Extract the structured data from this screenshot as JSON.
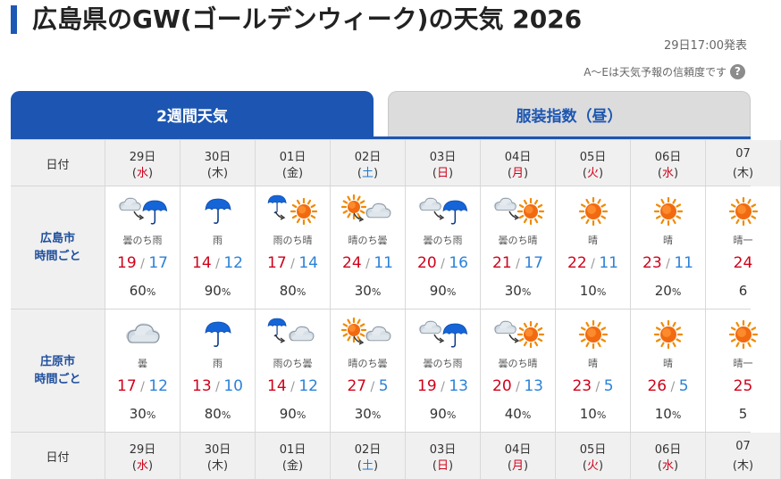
{
  "header": {
    "title": "広島県のGW(ゴールデンウィーク)の天気 2026",
    "published": "29日17:00発表",
    "reliability_note": "A〜Eは天気予報の信頼度です",
    "help_icon": "question-circle-icon"
  },
  "tabs": [
    {
      "label": "2週間天気",
      "active": true
    },
    {
      "label": "服装指数（昼）",
      "active": false
    }
  ],
  "colors": {
    "accent": "#1c56b2",
    "max_temp": "#d0021b",
    "min_temp": "#2b82d9",
    "sunday": "#d0021b",
    "saturday": "#1f78d1"
  },
  "table": {
    "date_label": "日付",
    "days": [
      {
        "date": "29日",
        "dow": "水",
        "dow_color": "red"
      },
      {
        "date": "30日",
        "dow": "木",
        "dow_color": "normal"
      },
      {
        "date": "01日",
        "dow": "金",
        "dow_color": "normal"
      },
      {
        "date": "02日",
        "dow": "土",
        "dow_color": "blue"
      },
      {
        "date": "03日",
        "dow": "日",
        "dow_color": "red"
      },
      {
        "date": "04日",
        "dow": "月",
        "dow_color": "red"
      },
      {
        "date": "05日",
        "dow": "火",
        "dow_color": "red"
      },
      {
        "date": "06日",
        "dow": "水",
        "dow_color": "red"
      },
      {
        "date": "07",
        "dow": "木",
        "dow_color": "normal"
      }
    ],
    "cities": [
      {
        "label_line1": "広島市",
        "label_line2": "時間ごと",
        "forecasts": [
          {
            "weather": "曇のち雨",
            "icon": "cloud-then-rain-icon",
            "max": "19",
            "min": "17",
            "rain": "60",
            "pct": "%"
          },
          {
            "weather": "雨",
            "icon": "rain-icon",
            "max": "14",
            "min": "12",
            "rain": "90",
            "pct": "%"
          },
          {
            "weather": "雨のち晴",
            "icon": "rain-then-sun-icon",
            "max": "17",
            "min": "14",
            "rain": "80",
            "pct": "%"
          },
          {
            "weather": "晴のち曇",
            "icon": "sun-then-cloud-icon",
            "max": "24",
            "min": "11",
            "rain": "30",
            "pct": "%"
          },
          {
            "weather": "曇のち雨",
            "icon": "cloud-then-rain-icon",
            "max": "20",
            "min": "16",
            "rain": "90",
            "pct": "%"
          },
          {
            "weather": "曇のち晴",
            "icon": "cloud-then-sun-icon",
            "max": "21",
            "min": "17",
            "rain": "30",
            "pct": "%"
          },
          {
            "weather": "晴",
            "icon": "sun-icon",
            "max": "22",
            "min": "11",
            "rain": "10",
            "pct": "%"
          },
          {
            "weather": "晴",
            "icon": "sun-icon",
            "max": "23",
            "min": "11",
            "rain": "20",
            "pct": "%"
          },
          {
            "weather": "晴一",
            "icon": "sun-icon",
            "max": "24",
            "min": "",
            "rain": "6",
            "pct": ""
          }
        ]
      },
      {
        "label_line1": "庄原市",
        "label_line2": "時間ごと",
        "forecasts": [
          {
            "weather": "曇",
            "icon": "cloud-icon",
            "max": "17",
            "min": "12",
            "rain": "30",
            "pct": "%"
          },
          {
            "weather": "雨",
            "icon": "rain-icon",
            "max": "13",
            "min": "10",
            "rain": "80",
            "pct": "%"
          },
          {
            "weather": "雨のち曇",
            "icon": "rain-then-cloud-icon",
            "max": "14",
            "min": "12",
            "rain": "90",
            "pct": "%"
          },
          {
            "weather": "晴のち曇",
            "icon": "sun-then-cloud-icon",
            "max": "27",
            "min": "5",
            "rain": "30",
            "pct": "%"
          },
          {
            "weather": "曇のち雨",
            "icon": "cloud-then-rain-icon",
            "max": "19",
            "min": "13",
            "rain": "90",
            "pct": "%"
          },
          {
            "weather": "曇のち晴",
            "icon": "cloud-then-sun-icon",
            "max": "20",
            "min": "13",
            "rain": "40",
            "pct": "%"
          },
          {
            "weather": "晴",
            "icon": "sun-icon",
            "max": "23",
            "min": "5",
            "rain": "10",
            "pct": "%"
          },
          {
            "weather": "晴",
            "icon": "sun-icon",
            "max": "26",
            "min": "5",
            "rain": "10",
            "pct": "%"
          },
          {
            "weather": "晴一",
            "icon": "sun-icon",
            "max": "25",
            "min": "",
            "rain": "5",
            "pct": ""
          }
        ]
      }
    ]
  }
}
